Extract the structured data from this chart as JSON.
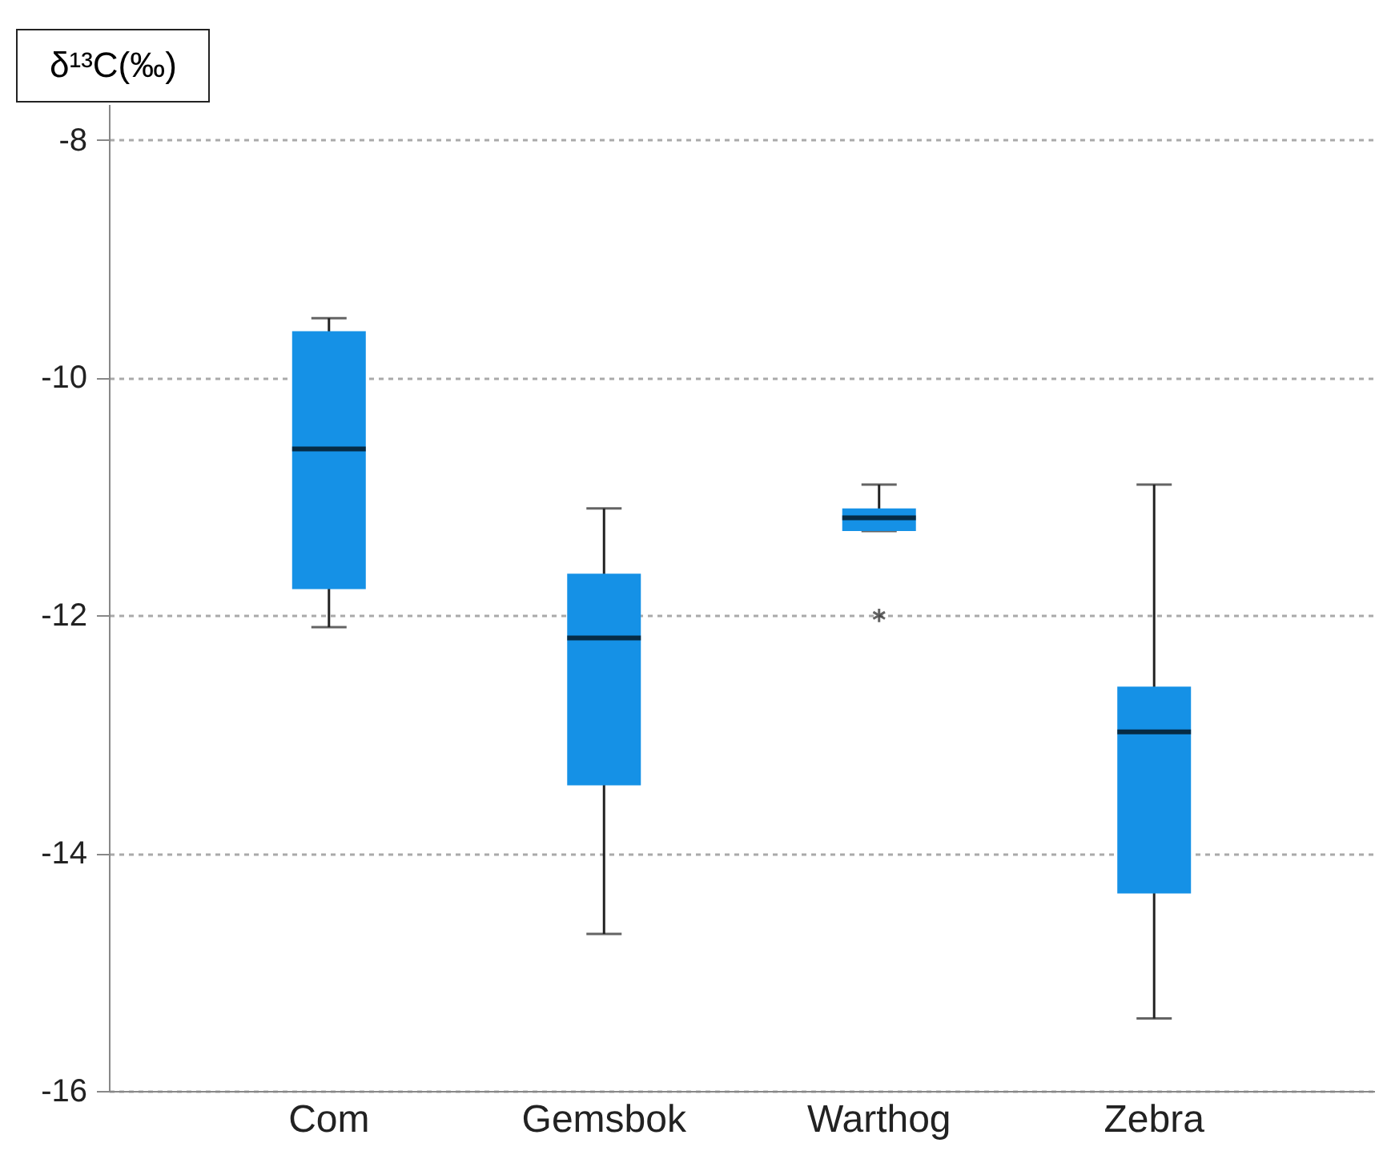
{
  "chart_data": {
    "type": "box",
    "ylabel": "δ¹³C(‰)",
    "categories": [
      "Com",
      "Gemsbok",
      "Warthog",
      "Zebra"
    ],
    "series": [
      {
        "color": "#1591e6",
        "boxes": [
          {
            "low": -12.1,
            "q1": -11.78,
            "median": -10.6,
            "q3": -9.61,
            "high": -9.5
          },
          {
            "low": -14.68,
            "q1": -13.43,
            "median": -12.19,
            "q3": -11.65,
            "high": -11.1
          },
          {
            "low": -11.29,
            "q1": -11.29,
            "median": -11.18,
            "q3": -11.1,
            "high": -10.9,
            "outliers": [
              -12.0
            ]
          },
          {
            "low": -15.39,
            "q1": -14.34,
            "median": -12.98,
            "q3": -12.6,
            "high": -10.9
          }
        ]
      }
    ],
    "ylim": [
      -16,
      -7.7
    ],
    "yticks": [
      -16,
      -14,
      -12,
      -10,
      -8
    ],
    "grid": "y",
    "marker": "star"
  }
}
